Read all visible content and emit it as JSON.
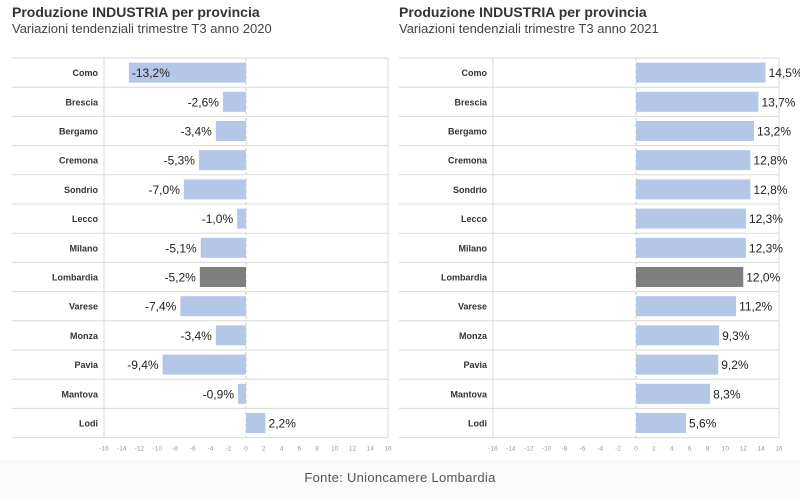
{
  "source": "Fonte: Unioncamere Lombardia",
  "colors": {
    "bar": "#b4c7e7",
    "highlight": "#7f7f7f",
    "label": "#222222",
    "category": "#333333",
    "tick": "#999999",
    "grid": "#d9d9d9"
  },
  "chart_data": [
    {
      "type": "bar",
      "orientation": "horizontal",
      "title": "Produzione INDUSTRIA per provincia",
      "subtitle": "Variazioni tendenziali trimestre T3 anno 2020",
      "categories": [
        "Como",
        "Brescia",
        "Bergamo",
        "Cremona",
        "Sondrio",
        "Lecco",
        "Milano",
        "Lombardia",
        "Varese",
        "Monza",
        "Pavia",
        "Mantova",
        "Lodi"
      ],
      "values": [
        -13.2,
        -2.6,
        -3.4,
        -5.3,
        -7.0,
        -1.0,
        -5.1,
        -5.2,
        -7.4,
        -3.4,
        -9.4,
        -0.9,
        2.2
      ],
      "value_labels": [
        "-13,2%",
        "-2,6%",
        "-3,4%",
        "-5,3%",
        "-7,0%",
        "-1,0%",
        "-5,1%",
        "-5,2%",
        "-7,4%",
        "-3,4%",
        "-9,4%",
        "-0,9%",
        "2,2%"
      ],
      "highlight": "Lombardia",
      "xlim": [
        -16,
        16
      ],
      "ticks": [
        -16,
        -14,
        -12,
        -10,
        -8,
        -6,
        -4,
        -2,
        0,
        2,
        4,
        6,
        8,
        10,
        12,
        14,
        16
      ]
    },
    {
      "type": "bar",
      "orientation": "horizontal",
      "title": "Produzione INDUSTRIA per provincia",
      "subtitle": "Variazioni tendenziali trimestre T3 anno 2021",
      "categories": [
        "Como",
        "Brescia",
        "Bergamo",
        "Cremona",
        "Sondrio",
        "Lecco",
        "Milano",
        "Lombardia",
        "Varese",
        "Monza",
        "Pavia",
        "Mantova",
        "Lodi"
      ],
      "values": [
        14.5,
        13.7,
        13.2,
        12.8,
        12.8,
        12.3,
        12.3,
        12.0,
        11.2,
        9.3,
        9.2,
        8.3,
        5.6
      ],
      "value_labels": [
        "14,5%",
        "13,7%",
        "13,2%",
        "12,8%",
        "12,8%",
        "12,3%",
        "12,3%",
        "12,0%",
        "11,2%",
        "9,3%",
        "9,2%",
        "8,3%",
        "5,6%"
      ],
      "highlight": "Lombardia",
      "xlim": [
        -16,
        16
      ],
      "ticks": [
        -16,
        -14,
        -12,
        -10,
        -8,
        -6,
        -4,
        -2,
        0,
        2,
        4,
        6,
        8,
        10,
        12,
        14,
        16
      ]
    }
  ]
}
